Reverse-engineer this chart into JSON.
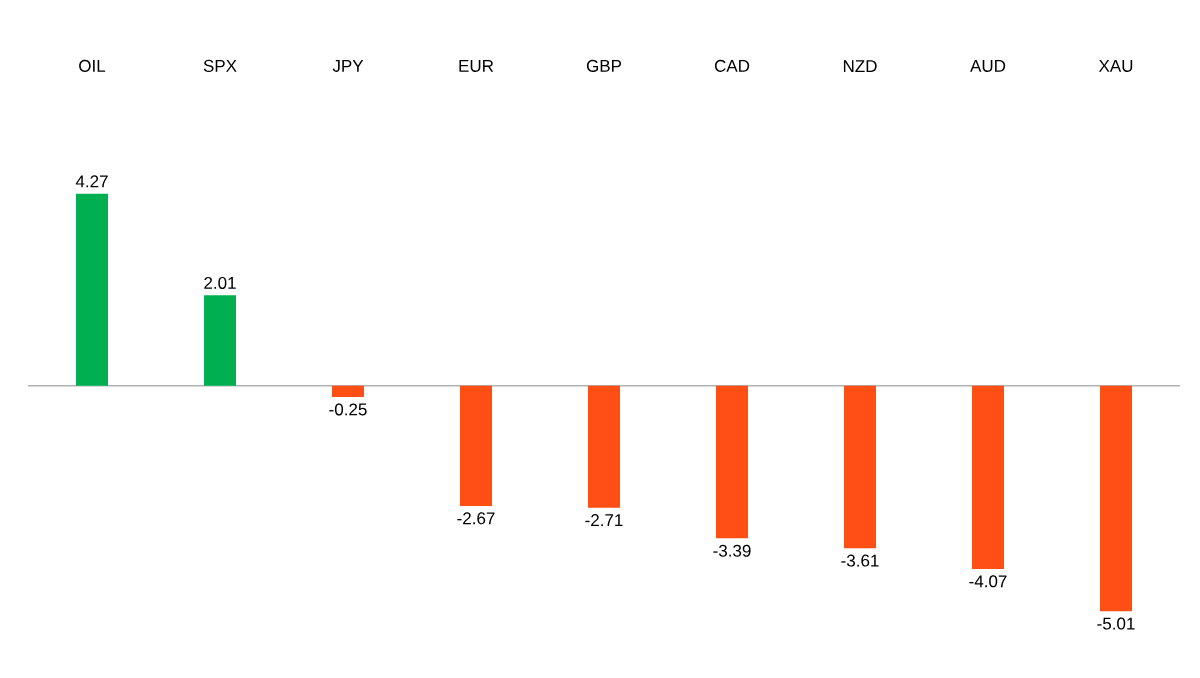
{
  "chart_data": {
    "type": "bar",
    "categories": [
      "OIL",
      "SPX",
      "JPY",
      "EUR",
      "GBP",
      "CAD",
      "NZD",
      "AUD",
      "XAU"
    ],
    "values": [
      4.27,
      2.01,
      -0.25,
      -2.67,
      -2.71,
      -3.39,
      -3.61,
      -4.07,
      -5.01
    ],
    "colors": [
      "#00b050",
      "#00b050",
      "#ff4f14",
      "#ff4f14",
      "#ff4f14",
      "#ff4f14",
      "#ff4f14",
      "#ff4f14",
      "#ff4f14"
    ],
    "data_labels": true
  }
}
